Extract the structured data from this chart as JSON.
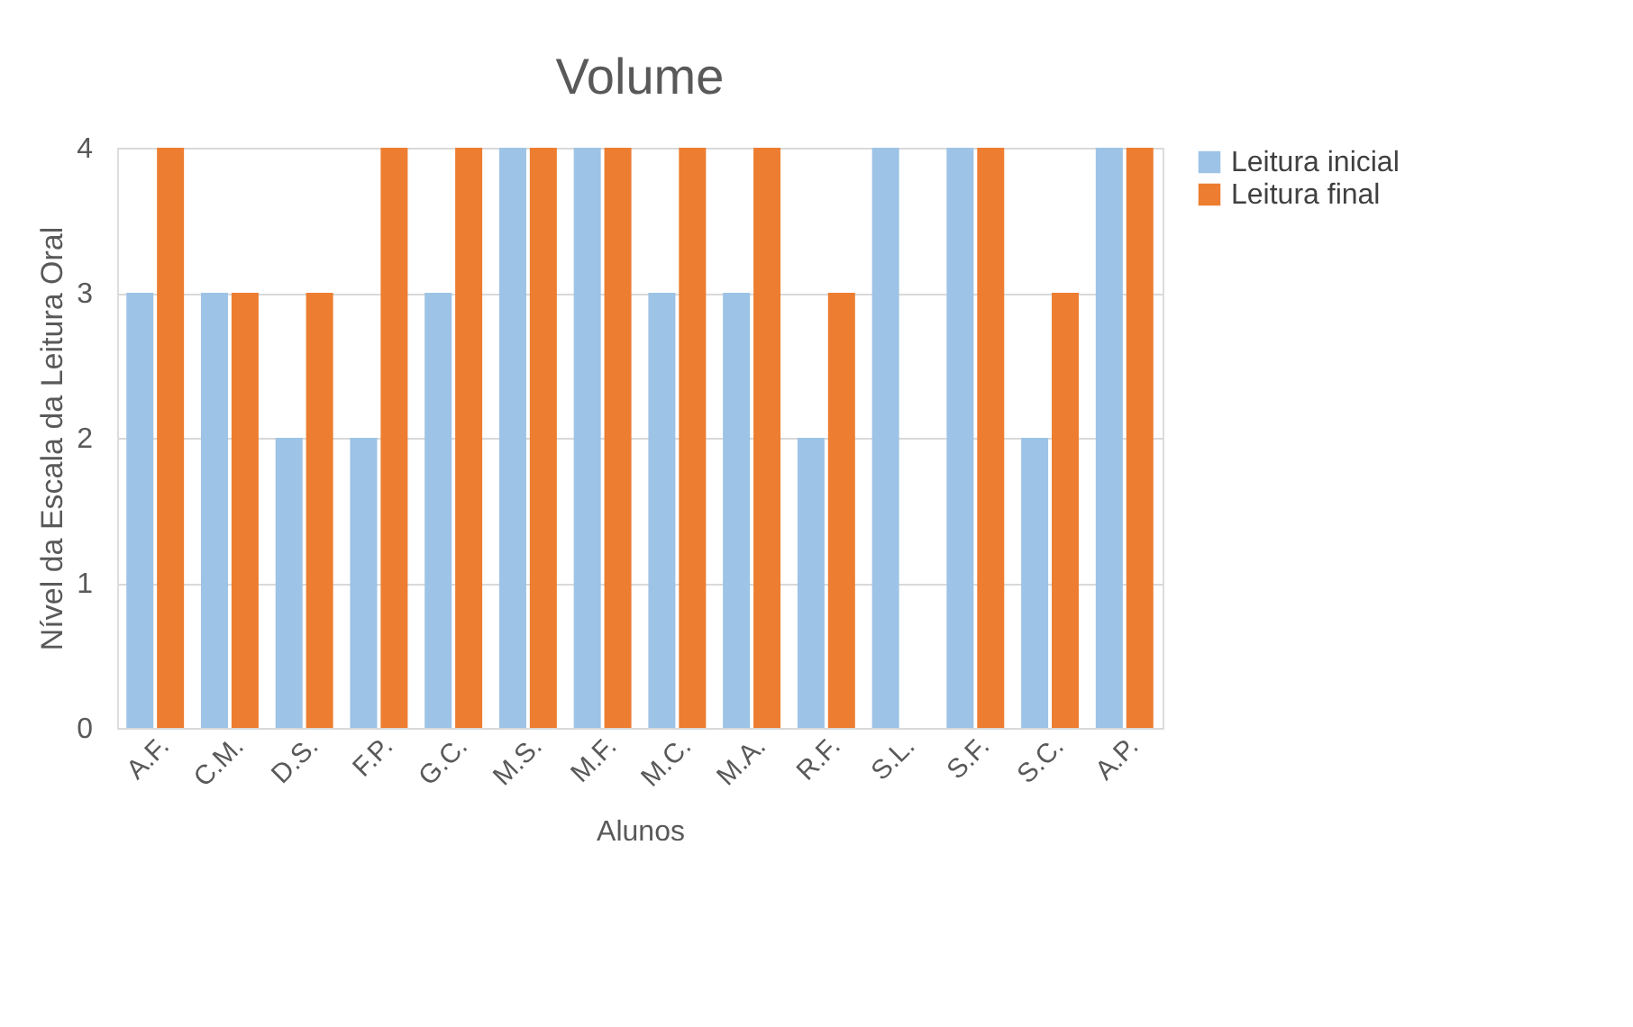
{
  "chart_data": {
    "type": "bar",
    "title": "Volume",
    "xlabel": "Alunos",
    "ylabel": "Nível da Escala da Leitura Oral",
    "categories": [
      "A.F.",
      "C.M.",
      "D.S.",
      "F.P.",
      "G.C.",
      "M.S.",
      "M.F.",
      "M.C.",
      "M.A.",
      "R.F.",
      "S.L.",
      "S.F.",
      "S.C.",
      "A.P."
    ],
    "series": [
      {
        "name": "Leitura inicial",
        "color": "#9dc3e6",
        "values": [
          3,
          3,
          2,
          2,
          3,
          4,
          4,
          3,
          3,
          2,
          4,
          4,
          2,
          4
        ]
      },
      {
        "name": "Leitura final",
        "color": "#ed7d31",
        "values": [
          4,
          3,
          3,
          4,
          4,
          4,
          4,
          4,
          4,
          3,
          null,
          4,
          3,
          4
        ]
      }
    ],
    "ylim": [
      0,
      4
    ],
    "yticks": [
      0,
      1,
      2,
      3,
      4
    ],
    "grid": "y",
    "legend": "right"
  }
}
